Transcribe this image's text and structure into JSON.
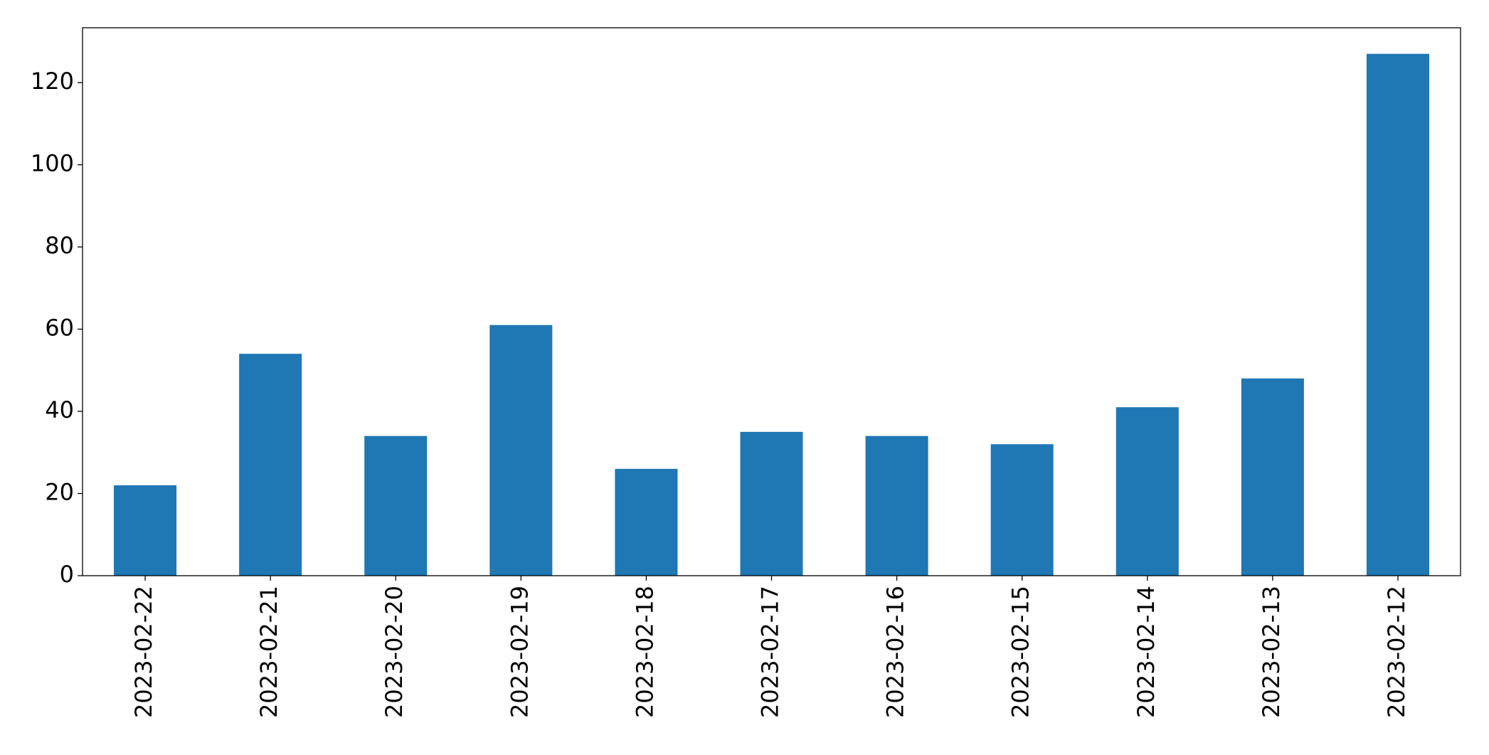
{
  "chart_data": {
    "type": "bar",
    "categories": [
      "2023-02-22",
      "2023-02-21",
      "2023-02-20",
      "2023-02-19",
      "2023-02-18",
      "2023-02-17",
      "2023-02-16",
      "2023-02-15",
      "2023-02-14",
      "2023-02-13",
      "2023-02-12"
    ],
    "values": [
      22,
      54,
      34,
      61,
      26,
      35,
      34,
      32,
      41,
      48,
      127
    ],
    "color": "#1f77b4",
    "ylim": [
      0,
      133.35
    ],
    "yticks": [
      0,
      20,
      40,
      60,
      80,
      100,
      120
    ],
    "grid": false
  }
}
